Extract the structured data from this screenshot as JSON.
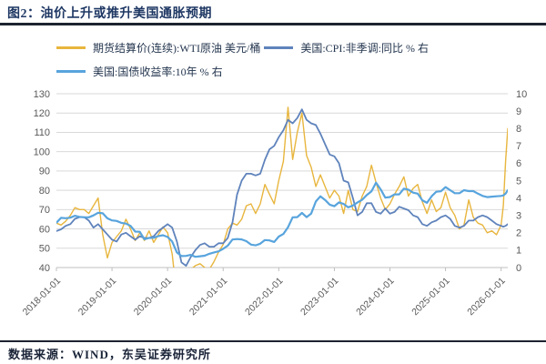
{
  "page": {
    "title": "图2：油价上升或推升美国通胀预期",
    "source_note": "数据来源：WIND，东吴证券研究所"
  },
  "colors": {
    "title_navy": "#1F3864",
    "divider_dark": "#1c2330",
    "grid_gray": "#d9d9d9",
    "axis_gray": "#bfbfbf",
    "tick_text_gray": "#595959"
  },
  "chart_data": {
    "type": "line",
    "title": "油价上升或推升美国通胀预期",
    "grid": true,
    "legend_position": "top-left",
    "x_range": [
      2018.0,
      2026.12
    ],
    "x_ticks": [
      "2018-01-01",
      "2019-01-01",
      "2020-01-01",
      "2021-01-01",
      "2022-01-01",
      "2023-01-01",
      "2024-01-01",
      "2025-01-01",
      "2026-01-01"
    ],
    "left_axis": {
      "label": "期货结算价 美元/桶",
      "min": 40,
      "max": 130,
      "ticks": [
        40,
        50,
        60,
        70,
        80,
        90,
        100,
        110,
        120,
        130
      ]
    },
    "right_axis": {
      "label": "% 右轴",
      "min": 0,
      "max": 10,
      "ticks": [
        0,
        1,
        2,
        3,
        4,
        5,
        6,
        7,
        8,
        9,
        10
      ]
    },
    "x": [
      2018.0,
      2018.083,
      2018.167,
      2018.25,
      2018.333,
      2018.417,
      2018.5,
      2018.583,
      2018.667,
      2018.75,
      2018.833,
      2018.917,
      2019.0,
      2019.083,
      2019.167,
      2019.25,
      2019.333,
      2019.417,
      2019.5,
      2019.583,
      2019.667,
      2019.75,
      2019.833,
      2019.917,
      2020.0,
      2020.083,
      2020.167,
      2020.25,
      2020.333,
      2020.417,
      2020.5,
      2020.583,
      2020.667,
      2020.75,
      2020.833,
      2020.917,
      2021.0,
      2021.083,
      2021.167,
      2021.25,
      2021.333,
      2021.417,
      2021.5,
      2021.583,
      2021.667,
      2021.75,
      2021.833,
      2021.917,
      2022.0,
      2022.083,
      2022.167,
      2022.25,
      2022.333,
      2022.417,
      2022.5,
      2022.583,
      2022.667,
      2022.75,
      2022.833,
      2022.917,
      2023.0,
      2023.083,
      2023.167,
      2023.25,
      2023.333,
      2023.417,
      2023.5,
      2023.583,
      2023.667,
      2023.75,
      2023.833,
      2023.917,
      2024.0,
      2024.083,
      2024.167,
      2024.25,
      2024.333,
      2024.417,
      2024.5,
      2024.583,
      2024.667,
      2024.75,
      2024.833,
      2024.917,
      2025.0,
      2025.083,
      2025.167,
      2025.25,
      2025.333,
      2025.417,
      2025.5,
      2025.583,
      2025.667,
      2025.75,
      2025.833,
      2025.917,
      2026.0,
      2026.04,
      2026.08,
      2026.12
    ],
    "series": [
      {
        "name": "期货结算价(连续):WTI原油 美元/桶",
        "axis": "left",
        "color": "#E8B63E",
        "values": [
          63,
          62,
          64,
          67,
          71,
          70,
          70,
          68,
          72,
          76,
          57,
          45,
          53,
          56,
          59,
          65,
          60,
          54,
          58,
          54,
          59,
          53,
          57,
          61,
          58,
          47,
          25,
          20,
          32,
          39,
          41,
          42,
          40,
          39,
          43,
          48,
          52,
          60,
          63,
          62,
          65,
          72,
          73,
          68,
          73,
          83,
          78,
          73,
          85,
          95,
          123,
          96,
          110,
          120,
          98,
          92,
          82,
          88,
          82,
          76,
          80,
          77,
          68,
          80,
          70,
          69,
          77,
          82,
          93,
          84,
          76,
          70,
          73,
          78,
          82,
          87,
          77,
          81,
          83,
          74,
          68,
          75,
          69,
          71,
          79,
          71,
          67,
          60,
          62,
          75,
          66,
          63,
          62,
          58,
          59,
          57,
          62,
          72,
          95,
          112
        ]
      },
      {
        "name": "美国:CPI:非季调:同比 % 右",
        "axis": "right",
        "color": "#5F83BC",
        "values": [
          2.1,
          2.2,
          2.4,
          2.5,
          2.8,
          2.9,
          2.9,
          2.7,
          2.3,
          2.5,
          2.2,
          1.9,
          1.6,
          1.5,
          1.9,
          2.0,
          1.8,
          1.6,
          1.8,
          1.7,
          1.7,
          1.8,
          2.1,
          2.3,
          2.5,
          2.3,
          1.5,
          0.3,
          0.1,
          0.6,
          1.0,
          1.3,
          1.4,
          1.2,
          1.2,
          1.4,
          1.4,
          1.7,
          2.6,
          4.2,
          5.0,
          5.4,
          5.4,
          5.3,
          5.4,
          6.2,
          6.8,
          7.0,
          7.5,
          7.9,
          8.5,
          8.3,
          8.6,
          9.1,
          8.5,
          8.3,
          8.2,
          7.7,
          7.1,
          6.5,
          6.4,
          6.0,
          5.0,
          4.9,
          4.0,
          3.0,
          3.2,
          3.7,
          3.7,
          3.2,
          3.1,
          3.4,
          3.1,
          3.2,
          3.5,
          3.4,
          3.3,
          3.0,
          2.9,
          2.5,
          2.4,
          2.6,
          2.7,
          2.9,
          3.0,
          2.8,
          2.4,
          2.3,
          2.4,
          2.7,
          2.7,
          2.9,
          3.0,
          2.9,
          2.7,
          2.5,
          2.4,
          2.35,
          2.4,
          2.5
        ]
      },
      {
        "name": "美国:国债收益率:10年 % 右",
        "axis": "right",
        "color": "#58A4DD",
        "values": [
          2.58,
          2.86,
          2.84,
          2.87,
          2.98,
          2.91,
          2.89,
          2.89,
          3.0,
          3.15,
          3.12,
          2.83,
          2.71,
          2.68,
          2.57,
          2.53,
          2.4,
          2.07,
          2.06,
          1.63,
          1.7,
          1.71,
          1.81,
          1.86,
          1.76,
          1.5,
          0.87,
          0.66,
          0.67,
          0.73,
          0.62,
          0.65,
          0.68,
          0.79,
          0.87,
          0.93,
          1.08,
          1.26,
          1.61,
          1.64,
          1.62,
          1.52,
          1.32,
          1.28,
          1.37,
          1.58,
          1.56,
          1.47,
          1.78,
          1.93,
          2.32,
          2.89,
          2.9,
          3.14,
          2.9,
          3.1,
          3.8,
          4.1,
          3.89,
          3.62,
          3.53,
          3.75,
          3.66,
          3.46,
          3.57,
          3.75,
          3.9,
          4.17,
          4.38,
          4.88,
          4.5,
          4.02,
          4.06,
          4.21,
          4.21,
          4.54,
          4.48,
          4.31,
          4.25,
          3.87,
          3.72,
          4.1,
          4.36,
          4.39,
          4.63,
          4.45,
          4.28,
          4.28,
          4.45,
          4.4,
          4.4,
          4.25,
          4.12,
          4.05,
          4.08,
          4.1,
          4.12,
          4.15,
          4.25,
          4.45
        ]
      }
    ]
  }
}
